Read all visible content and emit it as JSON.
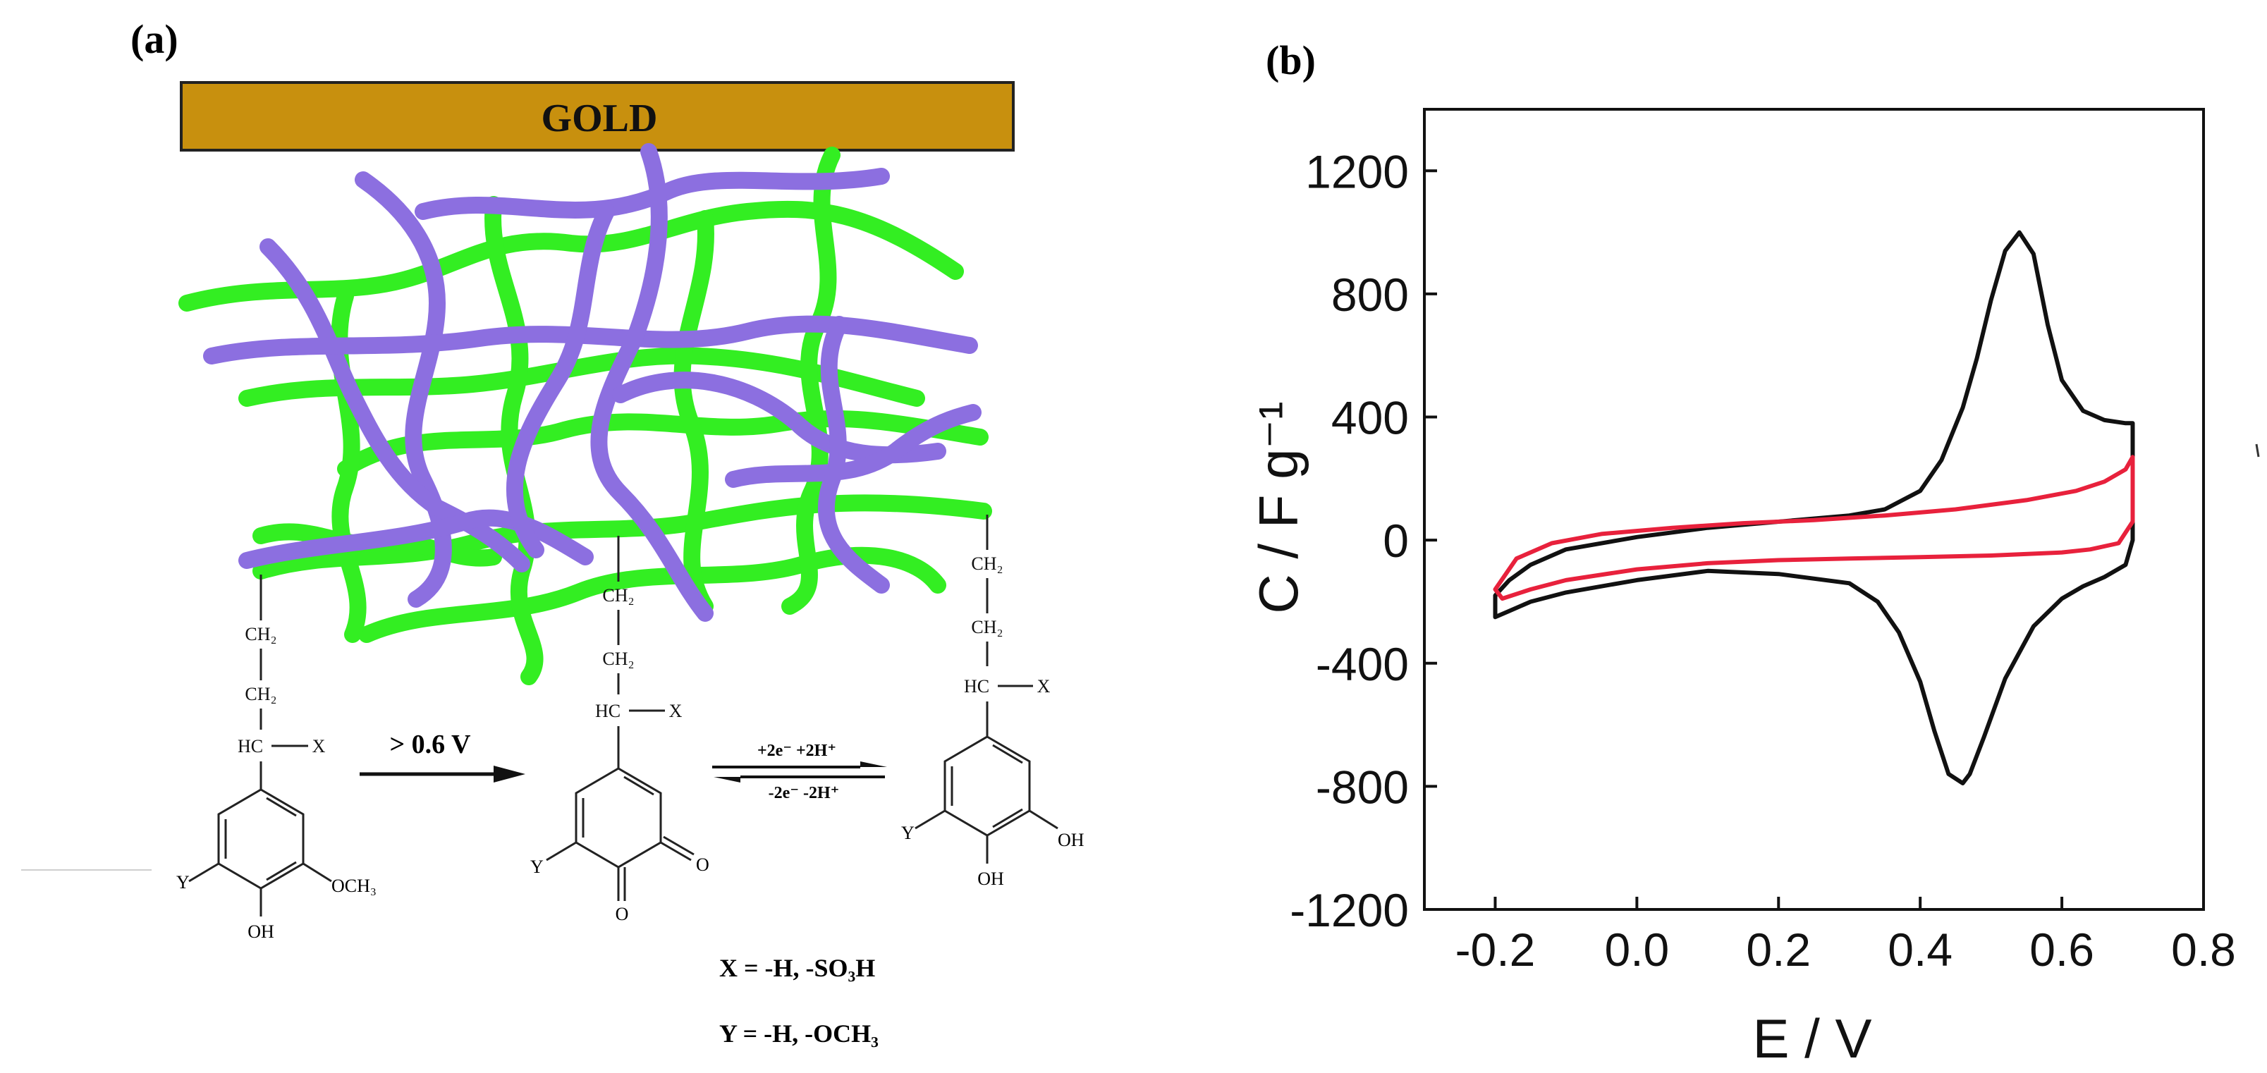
{
  "panel_a": {
    "label": "(a)",
    "gold_label": "GOLD",
    "arrow1_label": "> 0.6 V",
    "eq_forward": "+2e⁻ +2H⁺",
    "eq_backward": "-2e⁻ -2H⁺",
    "chain_ch2": "CH₂",
    "hc": "HC",
    "x_sub": "X",
    "y_sub": "Y",
    "och3": "OCH₃",
    "oh": "OH",
    "o": "O",
    "x_def": "X = -H, -SO₃H",
    "y_def": "Y = -H, -OCH₃",
    "colors": {
      "gold": "#c8900e",
      "green": "#33ee22",
      "purple": "#8c6fe0"
    }
  },
  "chart_data": {
    "type": "line",
    "panel_label": "(b)",
    "xlabel": "E / V",
    "ylabel": "C / F g⁻¹",
    "xlim": [
      -0.3,
      0.8
    ],
    "ylim": [
      -1200,
      1400
    ],
    "xticks": [
      -0.2,
      0.0,
      0.2,
      0.4,
      0.6,
      0.8
    ],
    "xtick_labels": [
      "-0.2",
      "0.0",
      "0.2",
      "0.4",
      "0.6",
      "0.8"
    ],
    "yticks": [
      -1200,
      -800,
      -400,
      0,
      400,
      800,
      1200
    ],
    "ytick_labels": [
      "-1200",
      "-800",
      "-400",
      "0",
      "400",
      "800",
      "1200"
    ],
    "series": [
      {
        "name": "black",
        "color": "#111111",
        "x": [
          -0.2,
          -0.18,
          -0.15,
          -0.1,
          0.0,
          0.1,
          0.2,
          0.3,
          0.35,
          0.4,
          0.43,
          0.46,
          0.48,
          0.5,
          0.52,
          0.54,
          0.56,
          0.58,
          0.6,
          0.63,
          0.66,
          0.69,
          0.7,
          0.7,
          0.69,
          0.66,
          0.63,
          0.6,
          0.56,
          0.52,
          0.49,
          0.47,
          0.46,
          0.44,
          0.42,
          0.4,
          0.37,
          0.34,
          0.3,
          0.2,
          0.1,
          0.0,
          -0.1,
          -0.15,
          -0.18,
          -0.2,
          -0.2
        ],
        "y": [
          -180,
          -130,
          -80,
          -30,
          10,
          40,
          60,
          80,
          100,
          160,
          260,
          430,
          590,
          780,
          940,
          1000,
          930,
          700,
          520,
          420,
          390,
          380,
          380,
          0,
          -80,
          -120,
          -150,
          -190,
          -280,
          -450,
          -640,
          -760,
          -790,
          -760,
          -620,
          -460,
          -300,
          -200,
          -140,
          -110,
          -100,
          -130,
          -170,
          -200,
          -230,
          -250,
          -180
        ]
      },
      {
        "name": "red",
        "color": "#e8213c",
        "x": [
          -0.2,
          -0.17,
          -0.12,
          -0.05,
          0.05,
          0.15,
          0.25,
          0.35,
          0.45,
          0.55,
          0.62,
          0.66,
          0.69,
          0.7,
          0.7,
          0.68,
          0.64,
          0.6,
          0.5,
          0.4,
          0.3,
          0.2,
          0.1,
          0.0,
          -0.1,
          -0.15,
          -0.19,
          -0.2
        ],
        "y": [
          -160,
          -60,
          -10,
          20,
          40,
          55,
          65,
          80,
          100,
          130,
          160,
          190,
          230,
          270,
          60,
          -10,
          -30,
          -40,
          -50,
          -55,
          -60,
          -65,
          -75,
          -95,
          -130,
          -160,
          -190,
          -160
        ]
      }
    ]
  }
}
